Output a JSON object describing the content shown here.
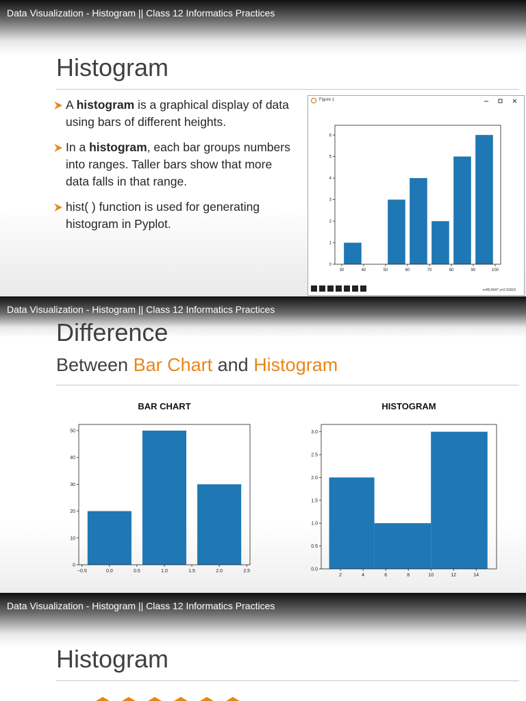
{
  "frames": [
    {
      "video_title": "Data Visualization - Histogram || Class 12 Informatics Practices",
      "slide": {
        "title": "Histogram",
        "bullets": [
          [
            "A ",
            {
              "text": "histogram",
              "bold": true
            },
            " is a graphical display of data using bars of different heights."
          ],
          [
            "In a ",
            {
              "text": "histogram",
              "bold": true
            },
            ", each bar groups numbers into ranges. Taller bars show that more data falls in that range."
          ],
          [
            "hist( ) function is used for generating histogram in Pyplot."
          ]
        ],
        "figure": {
          "window_title": "Figure 1",
          "status": "x=80.8347    y=2.91818",
          "chart_data": {
            "type": "histogram",
            "bins": [
              30,
              40,
              50,
              60,
              70,
              80,
              90,
              100
            ],
            "values": [
              1,
              0,
              3,
              4,
              2,
              5,
              6
            ],
            "rwidth": 0.8,
            "color": "#1f77b4",
            "xlim": [
              26.9,
              102.5
            ],
            "xticks": [
              30,
              40,
              50,
              60,
              70,
              80,
              90,
              100
            ],
            "ylim": [
              0,
              6.45
            ],
            "yticks": [
              0,
              1,
              2,
              3,
              4,
              5,
              6
            ]
          }
        }
      }
    },
    {
      "video_title": "Data Visualization - Histogram || Class 12 Informatics Practices",
      "slide": {
        "title": "Difference",
        "subtitle": [
          "Between ",
          {
            "text": "Bar Chart",
            "highlight": true
          },
          " and ",
          {
            "text": "Histogram",
            "highlight": true
          }
        ],
        "highlight_color": "#e8861a",
        "chart_data": [
          {
            "type": "bar",
            "title": "BAR CHART",
            "x": [
              0,
              1,
              2
            ],
            "values": [
              20,
              50,
              30
            ],
            "bar_width": 0.8,
            "color": "#1f77b4",
            "xlim": [
              -0.56,
              2.56
            ],
            "xticks": [
              {
                "value": -0.5,
                "label": "−0.5"
              },
              {
                "value": 0,
                "label": "0.0"
              },
              0.5,
              {
                "value": 1,
                "label": "1.0"
              },
              1.5,
              {
                "value": 2,
                "label": "2.0"
              },
              2.5
            ],
            "ylim": [
              0,
              52.3
            ],
            "yticks": [
              0,
              10,
              20,
              30,
              40,
              50
            ]
          },
          {
            "type": "histogram",
            "title": "HISTOGRAM",
            "bins": [
              1,
              5,
              10,
              15
            ],
            "values": [
              2,
              1,
              3
            ],
            "rwidth": 1,
            "color": "#1f77b4",
            "xlim": [
              0.3,
              15.8
            ],
            "xticks": [
              2,
              4,
              6,
              8,
              10,
              12,
              14
            ],
            "ylim": [
              0,
              3.16
            ],
            "yticks": [
              {
                "value": 0,
                "label": "0.0"
              },
              0.5,
              {
                "value": 1,
                "label": "1.0"
              },
              1.5,
              {
                "value": 2,
                "label": "2.0"
              },
              2.5,
              {
                "value": 3,
                "label": "3.0"
              }
            ]
          }
        ]
      }
    },
    {
      "video_title": "Data Visualization - Histogram || Class 12 Informatics Practices",
      "slide": {
        "title": "Histogram"
      }
    }
  ]
}
